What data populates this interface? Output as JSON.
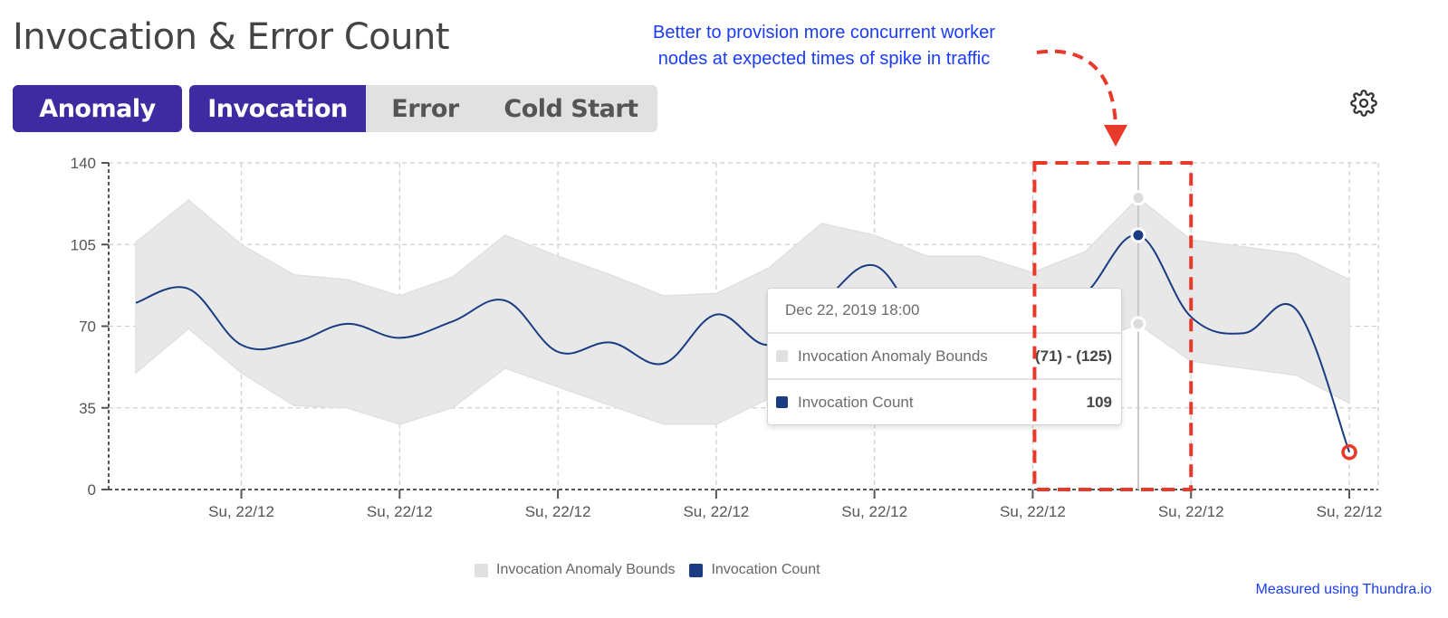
{
  "title": "Invocation & Error Count",
  "buttons": {
    "anomaly": "Anomaly"
  },
  "tabs": [
    {
      "label": "Invocation",
      "active": true
    },
    {
      "label": "Error",
      "active": false
    },
    {
      "label": "Cold Start",
      "active": false
    }
  ],
  "settings_icon": "gear-icon",
  "annotation": {
    "line1": "Better to provision more concurrent worker",
    "line2": "nodes at expected times of spike in traffic"
  },
  "footer": "Measured using Thundra.io",
  "colors": {
    "accent": "#3f2ba1",
    "count_line": "#1b3c82",
    "bounds_fill": "#e8e8e8",
    "annotation": "#1a3cf5",
    "highlight": "#e8392b"
  },
  "tooltip": {
    "date": "Dec 22, 2019 18:00",
    "rows": [
      {
        "label": "Invocation Anomaly Bounds",
        "value": "(71) - (125)"
      },
      {
        "label": "Invocation Count",
        "value": "109"
      }
    ]
  },
  "chart_data": {
    "type": "line",
    "title": "",
    "ylim": [
      0,
      140
    ],
    "yticks": [
      0,
      35,
      70,
      105,
      140
    ],
    "xtick_labels": [
      "Su, 22/12",
      "Su, 22/12",
      "Su, 22/12",
      "Su, 22/12",
      "Su, 22/12",
      "Su, 22/12",
      "Su, 22/12",
      "Su, 22/12"
    ],
    "xtick_indices": [
      2,
      5,
      8,
      11,
      14,
      17,
      20,
      23
    ],
    "grid": true,
    "legend_placement": "bottom",
    "legend": [
      "Invocation Anomaly Bounds",
      "Invocation Count"
    ],
    "series": [
      {
        "name": "Invocation Anomaly Bounds",
        "type": "area-range",
        "lower": [
          50,
          69,
          50,
          36,
          35,
          28,
          35,
          52,
          44,
          36,
          28,
          28,
          39,
          45,
          50,
          52,
          55,
          57,
          62,
          71,
          55,
          52,
          49,
          37
        ],
        "upper": [
          106,
          124,
          105,
          92,
          90,
          83,
          91,
          109,
          100,
          92,
          83,
          84,
          95,
          114,
          109,
          100,
          100,
          93,
          102,
          125,
          107,
          104,
          101,
          90
        ]
      },
      {
        "name": "Invocation Count",
        "type": "line",
        "values": [
          80,
          86,
          62,
          63,
          71,
          65,
          72,
          81,
          59,
          63,
          54,
          75,
          62,
          80,
          96,
          68,
          65,
          70,
          84,
          109,
          74,
          67,
          77,
          16
        ]
      }
    ],
    "hover_index": 19,
    "highlight_index": 23,
    "highlight_range": [
      17,
      20
    ]
  }
}
